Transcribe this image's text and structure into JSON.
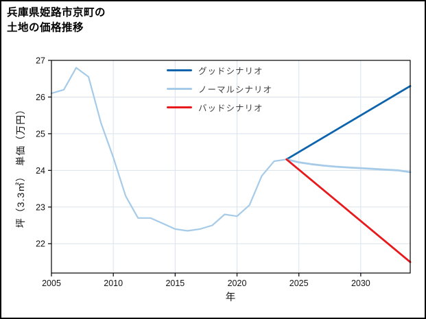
{
  "page": {
    "background": "#ffffff",
    "border_color": "#000000"
  },
  "title": {
    "line1": "兵庫県姫路市京町の",
    "line2": "土地の価格推移"
  },
  "chart_data": {
    "type": "line",
    "title": "兵庫県姫路市京町の土地の価格推移",
    "xlabel": "年",
    "ylabel": "坪（3.3㎡）　単価（万円）",
    "xlim": [
      2005,
      2034
    ],
    "ylim": [
      21.2,
      27
    ],
    "xticks": [
      2005,
      2010,
      2015,
      2020,
      2025,
      2030
    ],
    "yticks": [
      22,
      23,
      24,
      25,
      26,
      27
    ],
    "grid": true,
    "legend_position": "inside-top-center-left",
    "colors": {
      "grid": "#d9e2ec",
      "axis": "#000000",
      "tick_label": "#111111",
      "good": "#0d64ad",
      "normal": "#a6cbe8",
      "bad": "#e8191c"
    },
    "legend": [
      {
        "label": "グッドシナリオ",
        "color": "#0d64ad"
      },
      {
        "label": "ノーマルシナリオ",
        "color": "#a6cbe8"
      },
      {
        "label": "バッドシナリオ",
        "color": "#e8191c"
      }
    ],
    "series": [
      {
        "id": "history",
        "color": "#a6cbe8",
        "width": 2.2,
        "x": [
          2005,
          2006,
          2007,
          2008,
          2009,
          2010,
          2011,
          2012,
          2013,
          2014,
          2015,
          2016,
          2017,
          2018,
          2019,
          2020,
          2021,
          2022,
          2023,
          2024
        ],
        "values": [
          26.1,
          26.2,
          26.8,
          26.55,
          25.3,
          24.35,
          23.3,
          22.7,
          22.7,
          22.55,
          22.4,
          22.35,
          22.4,
          22.5,
          22.8,
          22.75,
          23.05,
          23.85,
          24.25,
          24.3
        ]
      },
      {
        "id": "good",
        "color": "#0d64ad",
        "width": 2.8,
        "x": [
          2024,
          2034
        ],
        "values": [
          24.3,
          26.3
        ]
      },
      {
        "id": "normal",
        "color": "#a6cbe8",
        "width": 2.8,
        "x": [
          2024,
          2025,
          2026,
          2027,
          2028,
          2029,
          2030,
          2031,
          2032,
          2033,
          2034
        ],
        "values": [
          24.3,
          24.22,
          24.17,
          24.13,
          24.1,
          24.08,
          24.06,
          24.04,
          24.02,
          24.0,
          23.95
        ]
      },
      {
        "id": "bad",
        "color": "#e8191c",
        "width": 2.8,
        "x": [
          2024,
          2034
        ],
        "values": [
          24.3,
          21.5
        ]
      }
    ]
  }
}
